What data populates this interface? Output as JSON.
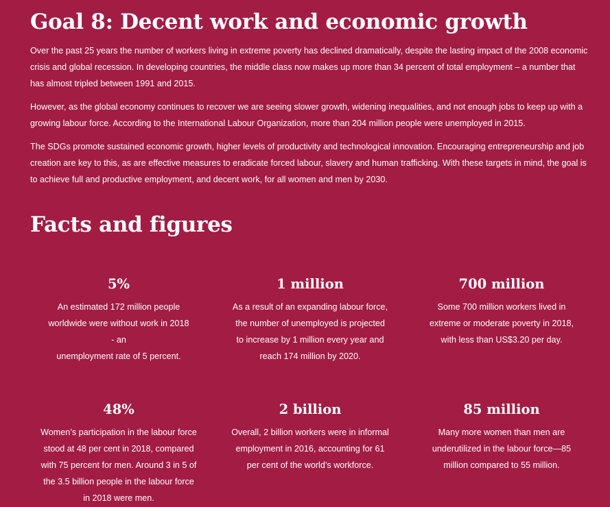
{
  "goal": {
    "title": "Goal 8: Decent work and economic growth",
    "paragraphs": [
      "Over the past 25 years the number of workers living in extreme poverty has declined dramatically, despite the lasting impact of the 2008 economic crisis and global recession. In developing countries, the middle class now makes up more than 34 percent of total employment – a number that has almost tripled between 1991 and 2015.",
      "However, as the global economy continues to recover we are seeing slower growth, widening inequalities, and not enough jobs to keep up with a growing labour force. According to the International Labour Organization, more than 204 million people were unemployed in 2015.",
      "The SDGs promote sustained economic growth, higher levels of productivity and technological innovation. Encouraging entrepreneurship and job creation are key to this, as are effective measures to eradicate forced labour, slavery and human trafficking. With these targets in mind, the goal is to achieve full and productive employment, and decent work, for all women and men by 2030."
    ]
  },
  "facts": {
    "title": "Facts and figures",
    "items": [
      {
        "stat": "5%",
        "lines": [
          "An estimated 172 million people",
          "worldwide were without work in 2018 - an",
          "unemployment rate of 5 percent."
        ]
      },
      {
        "stat": "1 million",
        "lines": [
          "As a result of an expanding labour force,",
          "the number of unemployed is projected",
          "to increase by 1 million every year and",
          "reach 174 million by 2020."
        ]
      },
      {
        "stat": "700 million",
        "lines": [
          "Some 700 million workers lived in",
          "extreme or moderate poverty in 2018,",
          "with less than US$3.20 per day."
        ]
      },
      {
        "stat": "48%",
        "lines": [
          "Women’s participation in the labour force",
          "stood at 48 per cent in 2018, compared",
          "with 75 percent for men. Around 3 in 5 of",
          "the 3.5 billion people in the labour force",
          "in 2018 were men."
        ]
      },
      {
        "stat": "2 billion",
        "lines": [
          "Overall, 2 billion workers were in informal",
          "employment in 2016, accounting for 61",
          "per cent of the world’s workforce."
        ]
      },
      {
        "stat": "85 million",
        "lines": [
          "Many more women than men are",
          "underutilized in the labour force—85",
          "million compared to 55 million."
        ]
      }
    ]
  },
  "colors": {
    "background": "#a21c44",
    "text": "#ffffff"
  }
}
